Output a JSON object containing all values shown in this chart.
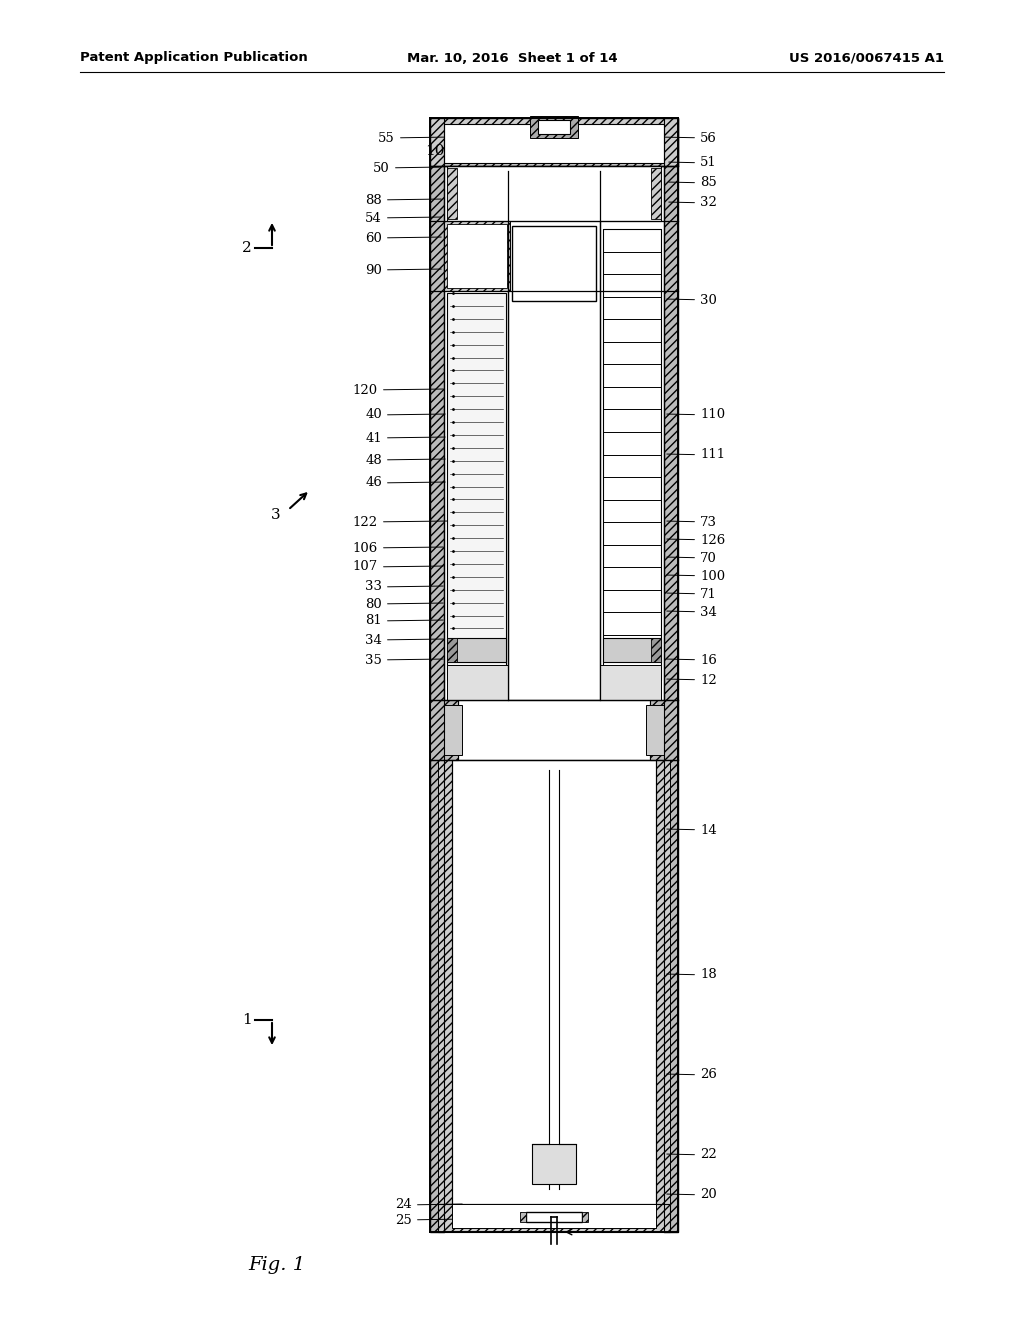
{
  "header_left": "Patent Application Publication",
  "header_center": "Mar. 10, 2016  Sheet 1 of 14",
  "header_right": "US 2016/0067415 A1",
  "fig_label": "Fig. 1",
  "bg": "#ffffff",
  "lc": "#000000",
  "labels_left": [
    [
      "55",
      395,
      138
    ],
    [
      "50",
      390,
      168
    ],
    [
      "88",
      382,
      200
    ],
    [
      "54",
      382,
      218
    ],
    [
      "60",
      382,
      238
    ],
    [
      "90",
      382,
      270
    ],
    [
      "120",
      378,
      390
    ],
    [
      "40",
      382,
      415
    ],
    [
      "41",
      382,
      438
    ],
    [
      "48",
      382,
      460
    ],
    [
      "46",
      382,
      483
    ],
    [
      "122",
      378,
      522
    ],
    [
      "106",
      378,
      548
    ],
    [
      "107",
      378,
      567
    ],
    [
      "33",
      382,
      587
    ],
    [
      "80",
      382,
      604
    ],
    [
      "81",
      382,
      621
    ],
    [
      "34",
      382,
      640
    ],
    [
      "35",
      382,
      660
    ],
    [
      "24",
      412,
      1205
    ],
    [
      "25",
      412,
      1220
    ]
  ],
  "labels_right": [
    [
      "56",
      700,
      138
    ],
    [
      "51",
      700,
      163
    ],
    [
      "85",
      700,
      183
    ],
    [
      "32",
      700,
      203
    ],
    [
      "30",
      700,
      300
    ],
    [
      "110",
      700,
      415
    ],
    [
      "111",
      700,
      455
    ],
    [
      "73",
      700,
      522
    ],
    [
      "126",
      700,
      540
    ],
    [
      "70",
      700,
      558
    ],
    [
      "100",
      700,
      576
    ],
    [
      "71",
      700,
      594
    ],
    [
      "34",
      700,
      612
    ],
    [
      "16",
      700,
      660
    ],
    [
      "12",
      700,
      680
    ],
    [
      "14",
      700,
      830
    ],
    [
      "18",
      700,
      975
    ],
    [
      "26",
      700,
      1075
    ],
    [
      "22",
      700,
      1155
    ],
    [
      "20",
      700,
      1195
    ]
  ]
}
